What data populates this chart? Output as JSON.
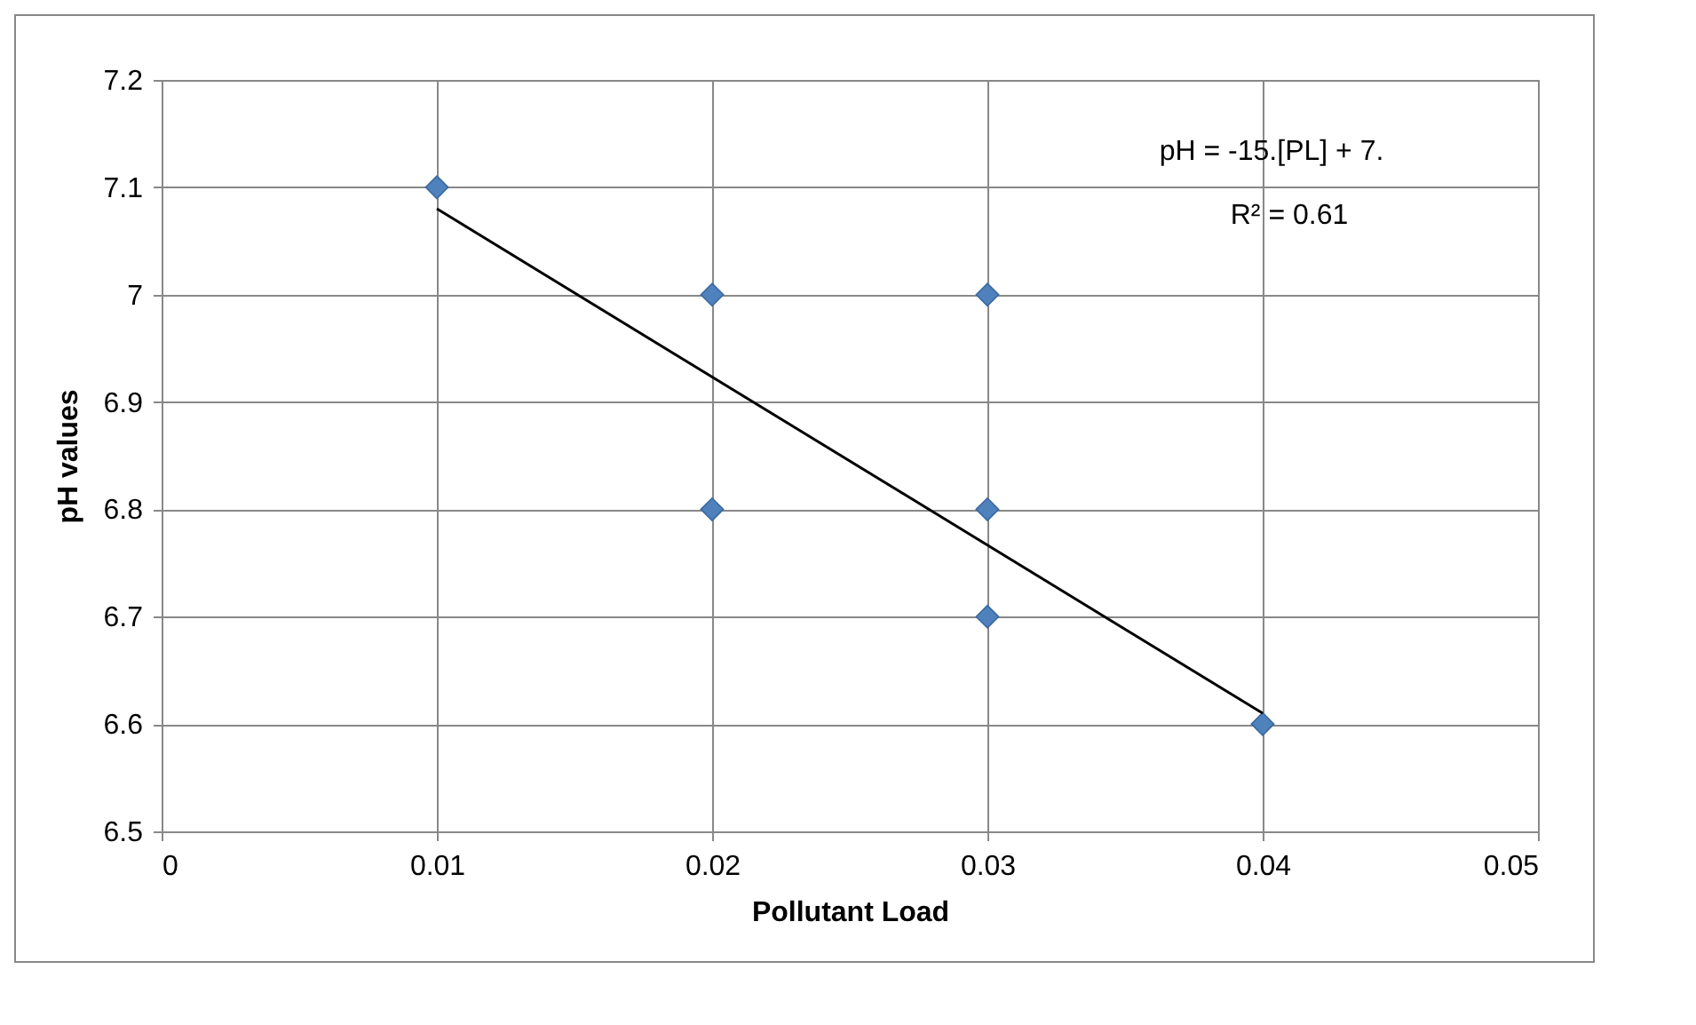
{
  "chart_data": {
    "type": "scatter",
    "xlabel": "Pollutant Load",
    "ylabel": "pH values",
    "xlim": [
      0,
      0.05
    ],
    "xticks": [
      0,
      0.01,
      0.02,
      0.03,
      0.04,
      0.05
    ],
    "ylim": [
      6.5,
      7.2
    ],
    "yticks": [
      6.5,
      6.6,
      6.7,
      6.8,
      6.9,
      7,
      7.1,
      7.2
    ],
    "grid": true,
    "marker": "diamond",
    "annotations": [
      "pH = -15.[PL] + 7.",
      "R² = 0.61"
    ],
    "series": [
      {
        "color": "#4f81bd",
        "x": [
          0.01,
          0.02,
          0.02,
          0.03,
          0.03,
          0.03,
          0.04
        ],
        "values": [
          7.1,
          7.0,
          6.8,
          7.0,
          6.8,
          6.7,
          6.6
        ]
      },
      {
        "type": "line",
        "color": "#000000",
        "marker": "none",
        "line_style": "solid",
        "x": [
          0.01,
          0.04
        ],
        "values": [
          7.08,
          6.61
        ]
      }
    ]
  }
}
